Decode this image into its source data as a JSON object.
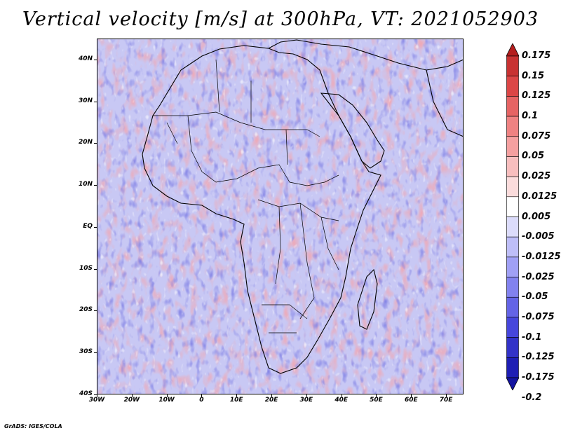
{
  "title": "Vertical velocity [m/s] at 300hPa, VT: 2021052903",
  "credit": "GrADS: IGES/COLA",
  "map": {
    "lat_labels": [
      "40N",
      "30N",
      "20N",
      "10N",
      "EQ",
      "10S",
      "20S",
      "30S",
      "40S"
    ],
    "lon_labels": [
      "30W",
      "20W",
      "10W",
      "0",
      "10E",
      "20E",
      "30E",
      "40E",
      "50E",
      "60E",
      "70E"
    ],
    "lat_range": [
      -40,
      45
    ],
    "lon_range": [
      -30,
      75
    ]
  },
  "colorbar": {
    "labels": [
      "0.175",
      "0.15",
      "0.125",
      "0.1",
      "0.075",
      "0.05",
      "0.025",
      "0.0125",
      "0.005",
      "-0.005",
      "-0.0125",
      "-0.025",
      "-0.05",
      "-0.075",
      "-0.1",
      "-0.125",
      "-0.175",
      "-0.2"
    ],
    "colors": [
      "#b41e1e",
      "#c83232",
      "#dc4646",
      "#e66464",
      "#ef8282",
      "#f5a0a0",
      "#f8bebe",
      "#fbdcdc",
      "#ffffff",
      "#dcdcfb",
      "#bebef8",
      "#a0a0f5",
      "#8282ef",
      "#6464e6",
      "#4646dc",
      "#3232c8",
      "#1e1eb4",
      "#1414a0"
    ]
  }
}
